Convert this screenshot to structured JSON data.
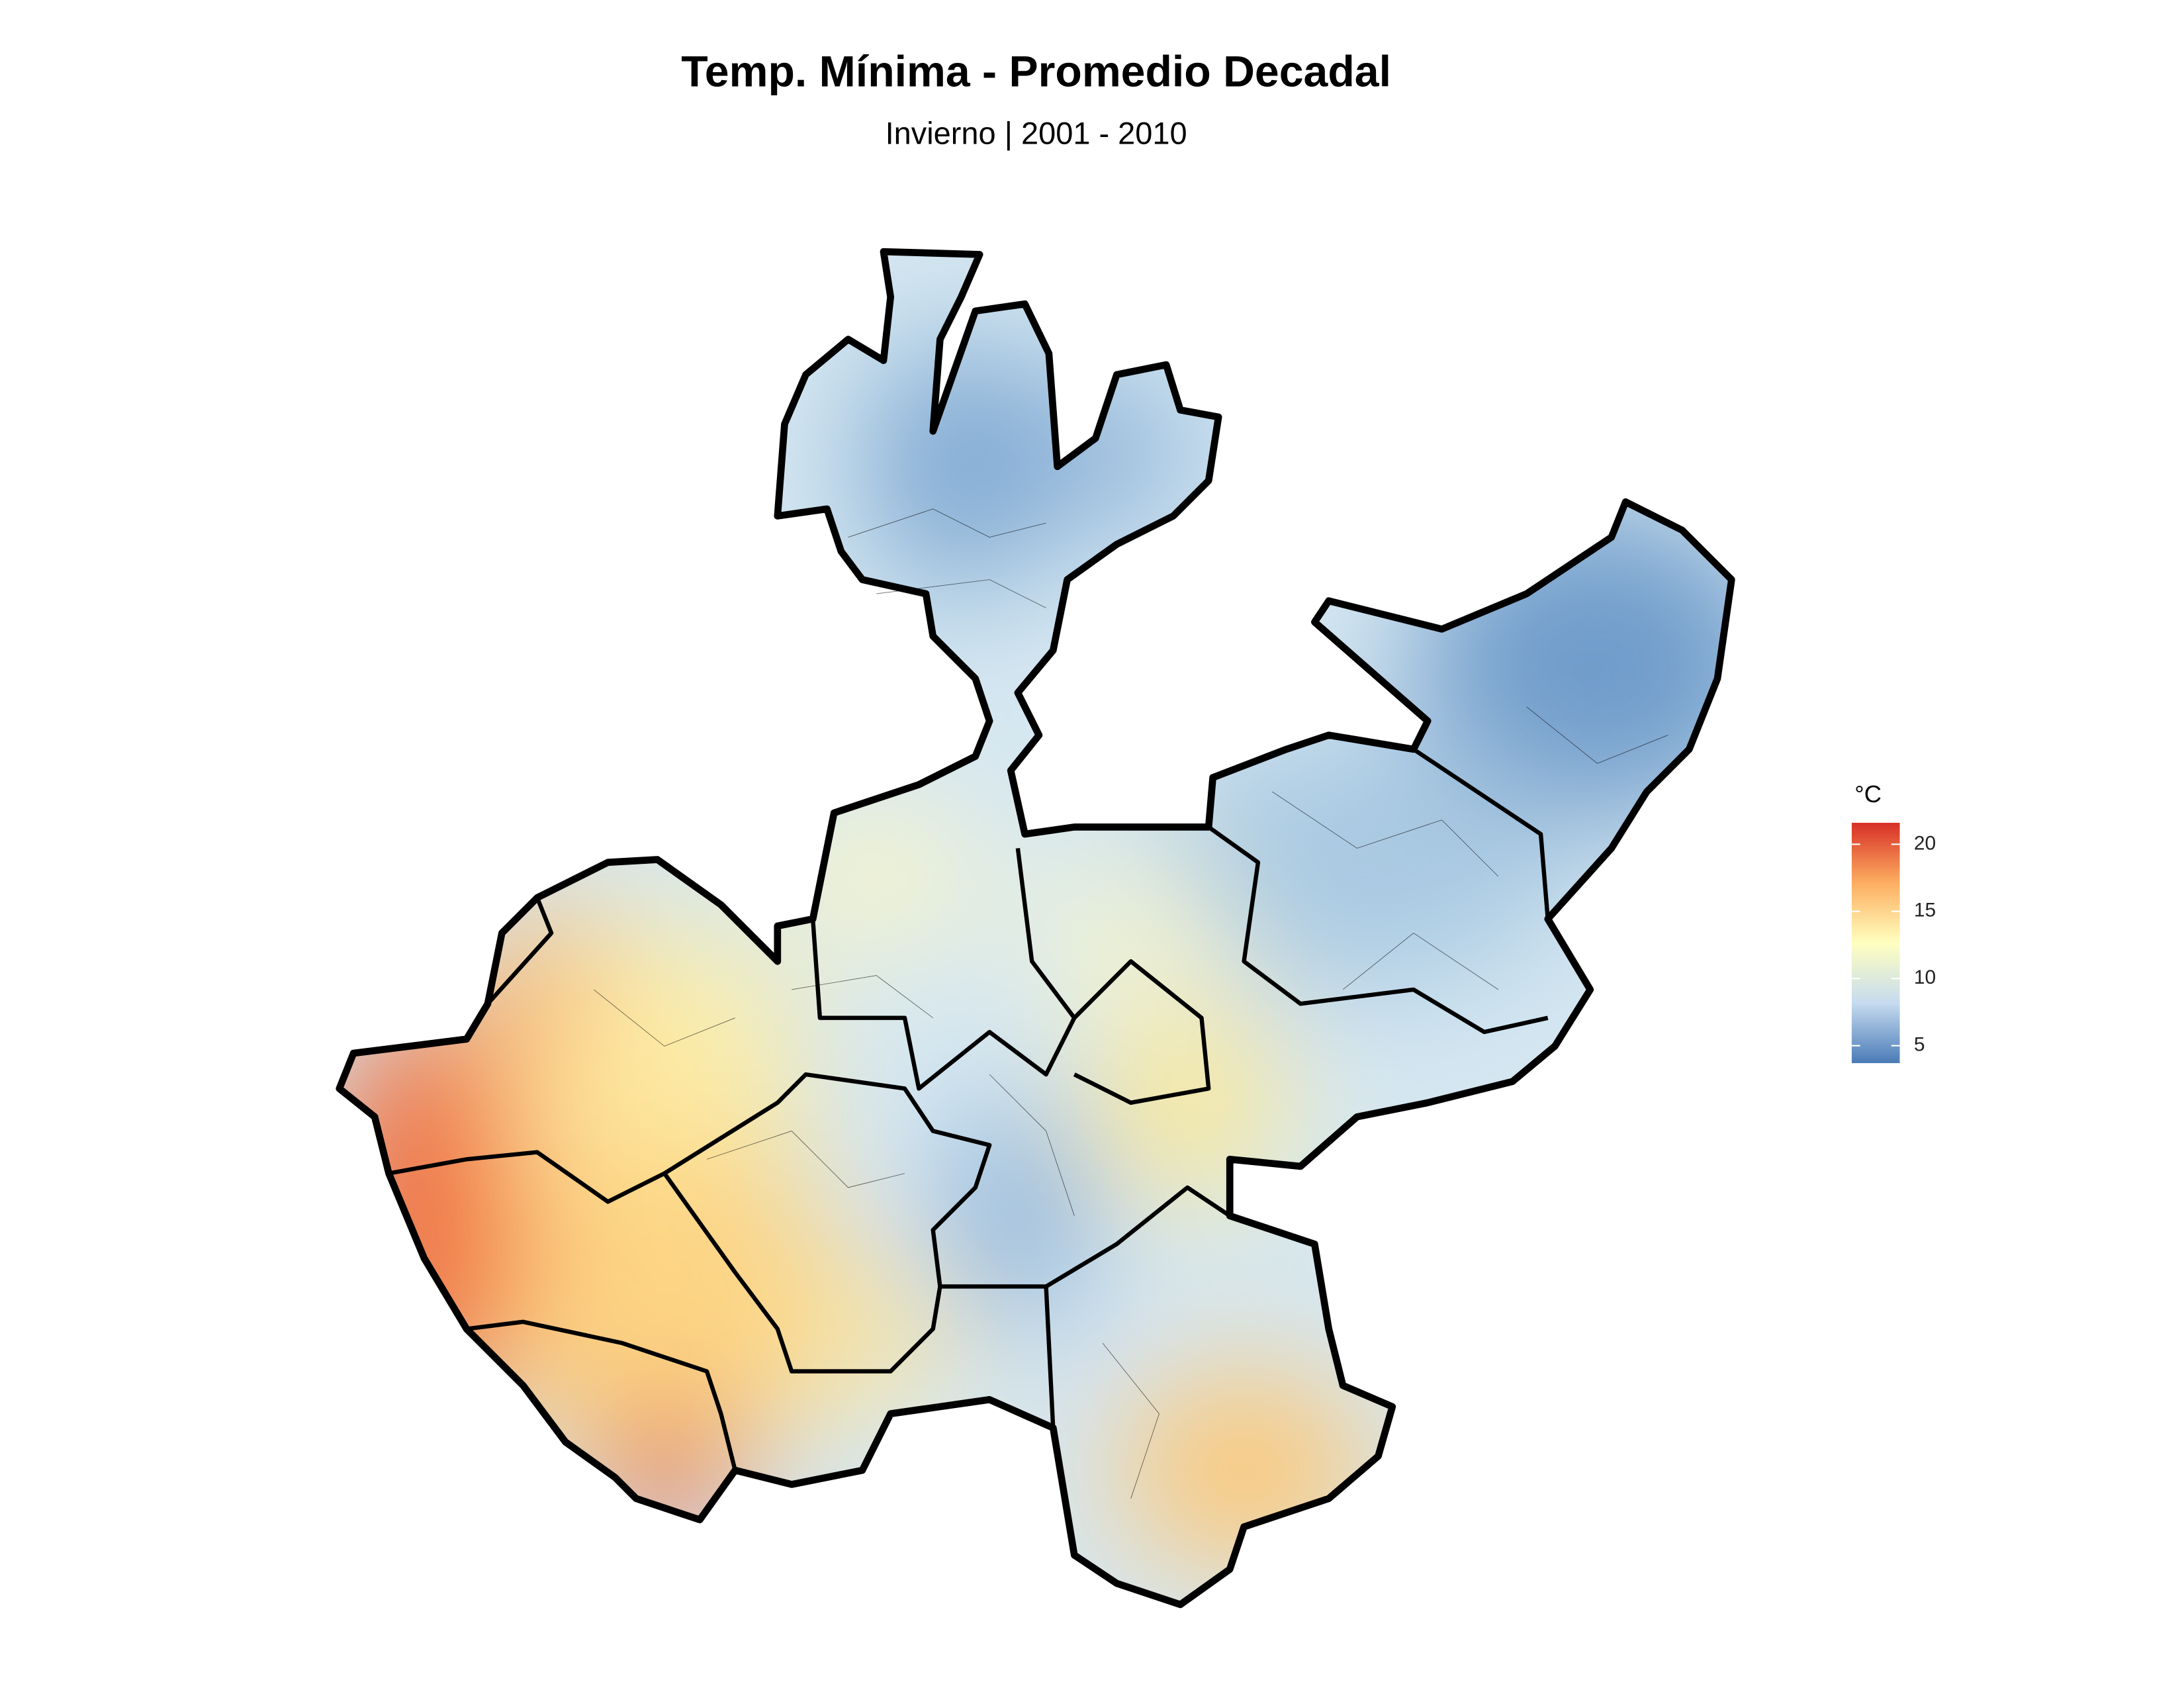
{
  "title": "Temp. Mínima - Promedio Decadal",
  "subtitle": "Invierno | 2001 - 2010",
  "legend": {
    "title": "°C",
    "lim": [
      3.7,
      21.6
    ],
    "ticks": [
      5,
      10,
      15,
      20
    ],
    "colors": [
      "#4a7bb7",
      "#c6dbef",
      "#ffffbf",
      "#fdae61",
      "#d73027"
    ]
  }
}
